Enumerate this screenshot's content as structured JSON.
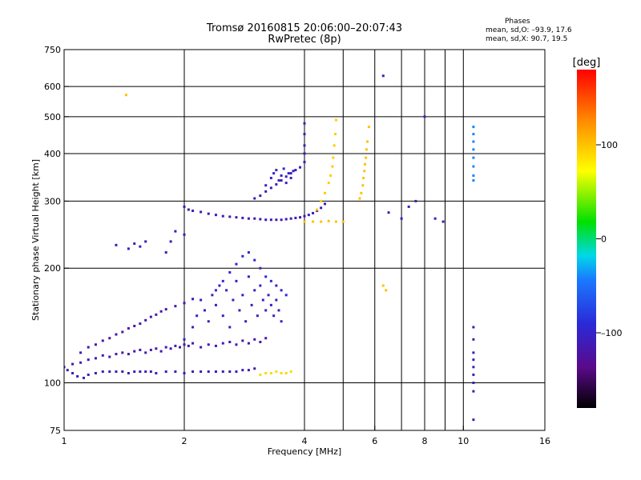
{
  "header": {
    "title_line1": "Tromsø 20160815 20:06:00–20:07:43",
    "title_line2": "RwPretec (8p)",
    "stats_heading": "Phases",
    "stats_o": "mean, sd,O: –93.9, 17.6",
    "stats_x": "mean, sd,X: 90.7, 19.5"
  },
  "chart_data": {
    "type": "scatter",
    "title": "Tromsø 20160815 20:06:00–20:07:43",
    "subtitle": "RwPretec (8p)",
    "xlabel": "Frequency [MHz]",
    "ylabel": "Stationary phase Virtual Height [km]",
    "xscale": "log",
    "yscale": "log",
    "xlim": [
      1,
      16
    ],
    "ylim": [
      75,
      750
    ],
    "xticks": [
      1,
      2,
      4,
      6,
      8,
      10,
      16
    ],
    "xtick_labels": [
      "1",
      "2",
      "4",
      "6",
      "8",
      "10",
      "16"
    ],
    "yticks": [
      75,
      100,
      200,
      300,
      400,
      500,
      600,
      750
    ],
    "ytick_labels": [
      "75",
      "100",
      "200",
      "300",
      "400",
      "500",
      "600",
      "750"
    ],
    "xgrid": [
      2,
      4,
      5,
      6,
      7,
      8,
      9,
      10
    ],
    "ygrid": [
      100,
      200,
      300,
      400,
      500,
      600
    ],
    "grid": true,
    "colorbar": {
      "label": "[deg]",
      "range": [
        -180,
        180
      ],
      "ticks": [
        -100,
        0,
        100
      ],
      "tick_labels": [
        "–100",
        "0",
        "100"
      ],
      "colormap": "black–purple–blue–cyan–green–yellow–orange–red"
    },
    "series": [
      {
        "phase": -110,
        "x": [
          1.02,
          1.05,
          1.08,
          1.12,
          1.15,
          1.2,
          1.25,
          1.3,
          1.35,
          1.4,
          1.45,
          1.5,
          1.55,
          1.6,
          1.65,
          1.7,
          1.8,
          1.9,
          2.0,
          2.1,
          2.2,
          2.3,
          2.4,
          2.5,
          2.6,
          2.7,
          2.8,
          2.9,
          3.0
        ],
        "y": [
          108,
          106,
          104,
          103,
          105,
          106,
          107,
          107,
          107,
          107,
          106,
          107,
          107,
          107,
          107,
          106,
          107,
          107,
          106,
          107,
          107,
          107,
          107,
          107,
          107,
          107,
          108,
          108,
          109
        ]
      },
      {
        "phase": -115,
        "x": [
          1.0,
          1.05,
          1.1,
          1.15,
          1.2,
          1.25,
          1.3,
          1.35,
          1.4,
          1.45,
          1.5,
          1.55,
          1.6,
          1.65,
          1.7,
          1.75,
          1.8,
          1.85,
          1.9,
          1.95,
          2.0,
          2.05,
          2.1,
          2.2,
          2.3,
          2.4,
          2.5,
          2.6,
          2.7,
          2.8,
          2.9,
          3.0,
          3.1,
          3.2
        ],
        "y": [
          110,
          112,
          113,
          115,
          116,
          118,
          117,
          119,
          120,
          119,
          121,
          122,
          120,
          122,
          123,
          121,
          124,
          123,
          125,
          124,
          126,
          125,
          127,
          124,
          126,
          125,
          127,
          128,
          126,
          129,
          127,
          130,
          128,
          131
        ]
      },
      {
        "phase": -120,
        "x": [
          1.1,
          1.15,
          1.2,
          1.25,
          1.3,
          1.35,
          1.4,
          1.45,
          1.5,
          1.55,
          1.6,
          1.65,
          1.7,
          1.75,
          1.8,
          1.9,
          2.0,
          2.1
        ],
        "y": [
          120,
          124,
          126,
          129,
          131,
          134,
          136,
          139,
          141,
          143,
          146,
          149,
          151,
          154,
          156,
          159,
          162,
          166
        ]
      },
      {
        "phase": -105,
        "x": [
          2.0,
          2.1,
          2.15,
          2.2,
          2.25,
          2.3,
          2.35,
          2.4,
          2.45,
          2.5,
          2.55,
          2.6,
          2.65,
          2.7,
          2.75,
          2.8,
          2.85,
          2.9,
          2.95,
          3.0,
          3.05,
          3.1,
          3.15,
          3.2,
          3.25,
          3.3,
          3.35,
          3.4,
          3.45,
          3.5
        ],
        "y": [
          130,
          140,
          150,
          165,
          155,
          145,
          170,
          160,
          180,
          150,
          175,
          140,
          165,
          185,
          155,
          170,
          145,
          190,
          160,
          175,
          150,
          180,
          165,
          155,
          170,
          160,
          150,
          165,
          155,
          145
        ]
      },
      {
        "phase": -95,
        "x": [
          2.4,
          2.5,
          2.6,
          2.7,
          2.8,
          2.9,
          3.0,
          3.1,
          3.2,
          3.3,
          3.4,
          3.5,
          3.6
        ],
        "y": [
          175,
          185,
          195,
          205,
          215,
          220,
          210,
          200,
          190,
          185,
          180,
          175,
          170
        ]
      },
      {
        "phase": -112,
        "x": [
          2.0,
          2.05,
          2.1,
          2.2,
          2.3,
          2.4,
          2.5,
          2.6,
          2.7,
          2.8,
          2.9,
          3.0,
          3.1,
          3.2,
          3.3,
          3.4,
          3.5,
          3.6,
          3.7,
          3.8,
          3.9,
          4.0,
          4.1,
          4.2,
          4.3,
          4.4,
          4.5
        ],
        "y": [
          290,
          285,
          283,
          281,
          278,
          276,
          274,
          273,
          272,
          271,
          270,
          270,
          269,
          268,
          268,
          268,
          268,
          269,
          270,
          271,
          272,
          274,
          276,
          279,
          283,
          288,
          295
        ]
      },
      {
        "phase": -110,
        "x": [
          3.0,
          3.1,
          3.2,
          3.3,
          3.4,
          3.5,
          3.6,
          3.7,
          3.8,
          3.9,
          4.0,
          4.0,
          4.0,
          4.0,
          4.0
        ],
        "y": [
          305,
          310,
          318,
          325,
          332,
          340,
          348,
          355,
          362,
          368,
          380,
          400,
          420,
          450,
          480
        ]
      },
      {
        "phase": -100,
        "x": [
          3.2,
          3.3,
          3.35,
          3.4,
          3.45,
          3.5,
          3.55,
          3.6,
          3.65,
          3.7,
          3.75
        ],
        "y": [
          330,
          345,
          355,
          362,
          340,
          350,
          365,
          335,
          355,
          345,
          360
        ]
      },
      {
        "phase": 90,
        "x": [
          3.1,
          3.2,
          3.3,
          3.4,
          3.5,
          3.6,
          3.7
        ],
        "y": [
          105,
          106,
          106,
          107,
          106,
          106,
          107
        ]
      },
      {
        "phase": 95,
        "x": [
          4.3,
          4.4,
          4.5,
          4.6,
          4.65,
          4.7,
          4.72,
          4.75,
          4.78,
          4.8
        ],
        "y": [
          285,
          300,
          315,
          335,
          350,
          370,
          390,
          420,
          450,
          490
        ]
      },
      {
        "phase": 100,
        "x": [
          5.5,
          5.55,
          5.6,
          5.62,
          5.65,
          5.67,
          5.7,
          5.72,
          5.75,
          5.8
        ],
        "y": [
          305,
          315,
          330,
          345,
          360,
          375,
          390,
          410,
          430,
          470
        ]
      },
      {
        "phase": 100,
        "x": [
          4.0,
          4.2,
          4.4,
          4.6,
          4.8,
          5.0
        ],
        "y": [
          265,
          265,
          265,
          266,
          265,
          265
        ]
      },
      {
        "phase": -110,
        "x": [
          1.35,
          1.45,
          1.5,
          1.55,
          1.6,
          1.8,
          1.85,
          1.9,
          2.0
        ],
        "y": [
          230,
          225,
          232,
          228,
          235,
          220,
          235,
          250,
          245
        ]
      },
      {
        "phase": -110,
        "x": [
          6.3,
          6.5,
          7.0,
          7.3,
          7.6,
          8.0,
          8.5,
          8.9
        ],
        "y": [
          640,
          280,
          270,
          290,
          300,
          500,
          270,
          265
        ]
      },
      {
        "phase": -40,
        "x": [
          10.6,
          10.6,
          10.6,
          10.6,
          10.6,
          10.6,
          10.6,
          10.6
        ],
        "y": [
          470,
          450,
          430,
          410,
          390,
          370,
          350,
          340
        ]
      },
      {
        "phase": -110,
        "x": [
          10.6,
          10.6,
          10.6,
          10.6,
          10.6,
          10.6,
          10.6,
          10.6,
          10.6
        ],
        "y": [
          140,
          130,
          120,
          115,
          110,
          105,
          100,
          95,
          80
        ]
      },
      {
        "phase": 100,
        "x": [
          1.43,
          6.3,
          6.4
        ],
        "y": [
          570,
          180,
          175
        ]
      }
    ]
  }
}
